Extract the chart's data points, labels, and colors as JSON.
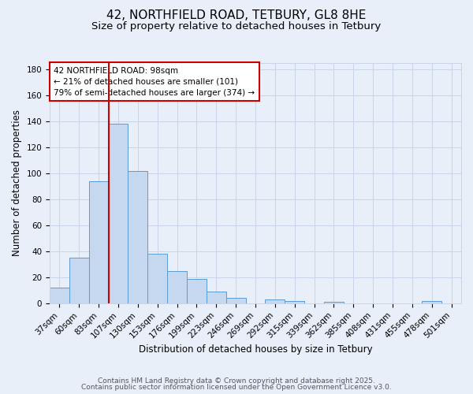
{
  "title": "42, NORTHFIELD ROAD, TETBURY, GL8 8HE",
  "subtitle": "Size of property relative to detached houses in Tetbury",
  "xlabel": "Distribution of detached houses by size in Tetbury",
  "ylabel": "Number of detached properties",
  "footer_line1": "Contains HM Land Registry data © Crown copyright and database right 2025.",
  "footer_line2": "Contains public sector information licensed under the Open Government Licence v3.0.",
  "bar_labels": [
    "37sqm",
    "60sqm",
    "83sqm",
    "107sqm",
    "130sqm",
    "153sqm",
    "176sqm",
    "199sqm",
    "223sqm",
    "246sqm",
    "269sqm",
    "292sqm",
    "315sqm",
    "339sqm",
    "362sqm",
    "385sqm",
    "408sqm",
    "431sqm",
    "455sqm",
    "478sqm",
    "501sqm"
  ],
  "bar_values": [
    12,
    35,
    94,
    138,
    102,
    38,
    25,
    19,
    9,
    4,
    0,
    3,
    2,
    0,
    1,
    0,
    0,
    0,
    0,
    2,
    0
  ],
  "bar_color": "#c5d8f0",
  "bar_edge_color": "#5b9bd5",
  "vline_color": "#cc0000",
  "vline_x": 2.5,
  "annotation_line1": "42 NORTHFIELD ROAD: 98sqm",
  "annotation_line2": "← 21% of detached houses are smaller (101)",
  "annotation_line3": "79% of semi-detached houses are larger (374) →",
  "annotation_box_facecolor": "#ffffff",
  "annotation_box_edgecolor": "#cc0000",
  "ylim": [
    0,
    185
  ],
  "yticks": [
    0,
    20,
    40,
    60,
    80,
    100,
    120,
    140,
    160,
    180
  ],
  "grid_color": "#c8d4e8",
  "bg_color": "#e8eff8",
  "title_fontsize": 11,
  "subtitle_fontsize": 9.5,
  "axis_label_fontsize": 8.5,
  "tick_fontsize": 7.5,
  "annotation_fontsize": 7.5,
  "footer_fontsize": 6.5
}
